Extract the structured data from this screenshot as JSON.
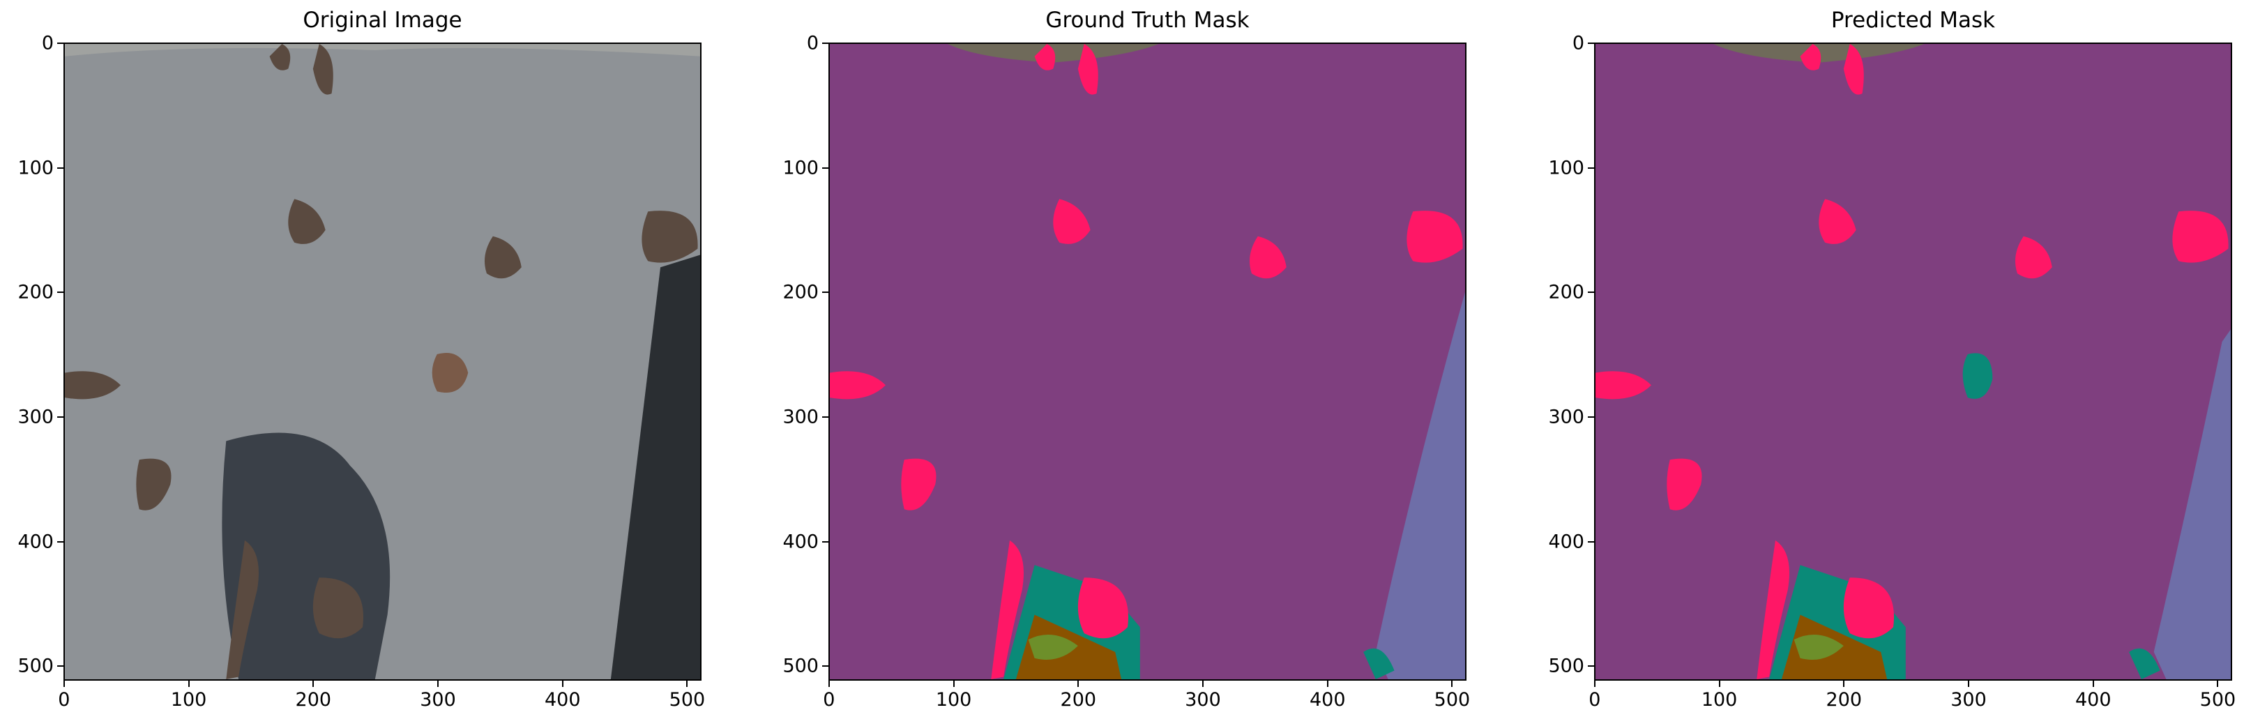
{
  "panels": [
    {
      "title": "Original Image",
      "x_ticks": [
        "0",
        "100",
        "200",
        "300",
        "400",
        "500"
      ],
      "y_ticks": [
        "0",
        "100",
        "200",
        "300",
        "400",
        "500"
      ],
      "kind": "photo"
    },
    {
      "title": "Ground Truth Mask",
      "x_ticks": [
        "0",
        "100",
        "200",
        "300",
        "400",
        "500"
      ],
      "y_ticks": [
        "0",
        "100",
        "200",
        "300",
        "400",
        "500"
      ],
      "kind": "gt"
    },
    {
      "title": "Predicted Mask",
      "x_ticks": [
        "0",
        "100",
        "200",
        "300",
        "400",
        "500"
      ],
      "y_ticks": [
        "0",
        "100",
        "200",
        "300",
        "400",
        "500"
      ],
      "kind": "pred"
    }
  ],
  "colors": {
    "background_class": "#7f3f7f",
    "person_class": "#ff1766",
    "vegetation_class": "#0a8a78",
    "grass_class": "#6d8f2a",
    "soil_class": "#8a5200",
    "wall_class": "#6e6ea8",
    "gravel_class": "#6f6a5a",
    "asphalt": "#8e9296",
    "shadow": "#3a4048"
  }
}
